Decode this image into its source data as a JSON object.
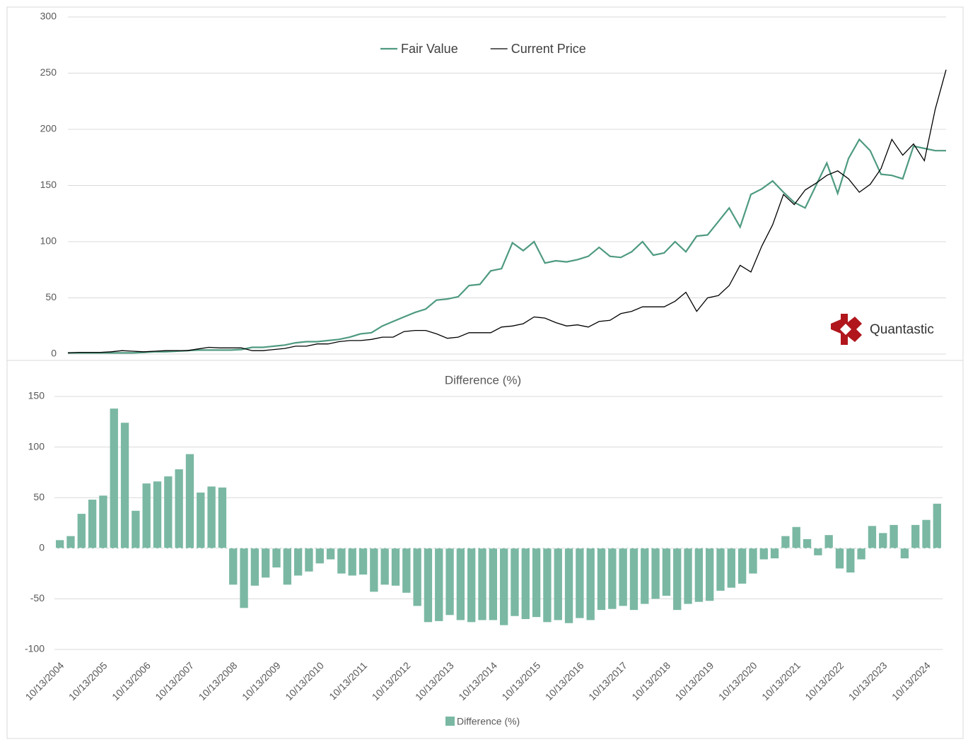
{
  "chart_data": [
    {
      "type": "line",
      "ylim": [
        0,
        300
      ],
      "yticks": [
        0,
        50,
        100,
        150,
        200,
        250,
        300
      ],
      "grid": true,
      "legend": "top",
      "series": [
        {
          "name": "Fair Value",
          "color": "#4e9a80",
          "values": [
            1,
            1,
            1,
            1,
            1,
            1,
            1,
            1.5,
            2,
            2,
            2.5,
            3,
            3.5,
            3.5,
            3.5,
            3.5,
            4,
            6,
            6,
            7,
            8,
            10,
            11,
            11,
            12,
            13,
            15,
            18,
            19,
            25,
            29,
            33,
            37,
            40,
            48,
            49,
            51,
            61,
            62,
            74,
            76,
            99,
            92,
            100,
            81,
            83,
            82,
            84,
            87,
            95,
            87,
            86,
            91,
            100,
            88,
            90,
            100,
            91,
            105,
            106,
            118,
            130,
            113,
            142,
            147,
            154,
            144,
            135,
            130,
            150,
            170,
            143,
            174,
            191,
            181,
            160,
            159,
            156,
            185,
            183,
            181,
            181
          ]
        },
        {
          "name": "Current Price",
          "color": "#000000",
          "values": [
            1,
            1.5,
            1.5,
            1.5,
            2,
            3,
            2.5,
            2,
            2.5,
            3,
            3,
            3,
            4.5,
            6,
            5.5,
            5.5,
            5.5,
            3,
            3,
            4,
            5,
            7,
            7,
            9,
            9,
            11,
            12,
            12,
            13,
            15,
            15,
            20,
            21,
            21,
            18,
            14,
            15,
            19,
            19,
            19,
            24,
            25,
            27,
            33,
            32,
            28,
            25,
            26,
            24,
            29,
            30,
            36,
            38,
            42,
            42,
            42,
            47,
            55,
            38,
            50,
            52,
            61,
            79,
            73,
            96,
            115,
            142,
            133,
            146,
            152,
            159,
            163,
            156,
            144,
            151,
            165,
            191,
            177,
            187,
            172,
            218,
            253
          ]
        }
      ]
    },
    {
      "type": "bar",
      "title": "Difference (%)",
      "categories": [
        "10/13/2004",
        null,
        null,
        null,
        "10/13/2005",
        null,
        null,
        null,
        "10/13/2006",
        null,
        null,
        null,
        "10/13/2007",
        null,
        null,
        null,
        "10/13/2008",
        null,
        null,
        null,
        "10/13/2009",
        null,
        null,
        null,
        "10/13/2010",
        null,
        null,
        null,
        "10/13/2011",
        null,
        null,
        null,
        "10/13/2012",
        null,
        null,
        null,
        "10/13/2013",
        null,
        null,
        null,
        "10/13/2014",
        null,
        null,
        null,
        "10/13/2015",
        null,
        null,
        null,
        "10/13/2016",
        null,
        null,
        null,
        "10/13/2017",
        null,
        null,
        null,
        "10/13/2018",
        null,
        null,
        null,
        "10/13/2019",
        null,
        null,
        null,
        "10/13/2020",
        null,
        null,
        null,
        "10/13/2021",
        null,
        null,
        null,
        "10/13/2022",
        null,
        null,
        null,
        "10/13/2023",
        null,
        null,
        null,
        "10/13/2024",
        null
      ],
      "ylim": [
        -100,
        150
      ],
      "yticks": [
        -100,
        -50,
        0,
        50,
        100,
        150
      ],
      "grid": true,
      "legend": "bottom",
      "series": [
        {
          "name": "Difference (%)",
          "color": "#7ab8a3",
          "values": [
            8,
            12,
            34,
            48,
            52,
            138,
            124,
            37,
            64,
            66,
            71,
            78,
            93,
            55,
            61,
            60,
            -36,
            -59,
            -37,
            -29,
            -19,
            -36,
            -27,
            -23,
            -15,
            -11,
            -25,
            -27,
            -26,
            -43,
            -36,
            -37,
            -44,
            -57,
            -73,
            -72,
            -66,
            -71,
            -73,
            -71,
            -71,
            -76,
            -67,
            -70,
            -68,
            -73,
            -71,
            -74,
            -69,
            -71,
            -61,
            -60,
            -57,
            -61,
            -55,
            -50,
            -47,
            -61,
            -55,
            -53,
            -52,
            -42,
            -39,
            -35,
            -25,
            -11,
            -10,
            12,
            21,
            9,
            -7,
            13,
            -20,
            -24,
            -11,
            22,
            15,
            23,
            -10,
            23,
            28,
            44
          ]
        }
      ]
    }
  ],
  "watermark": "Quantastic"
}
